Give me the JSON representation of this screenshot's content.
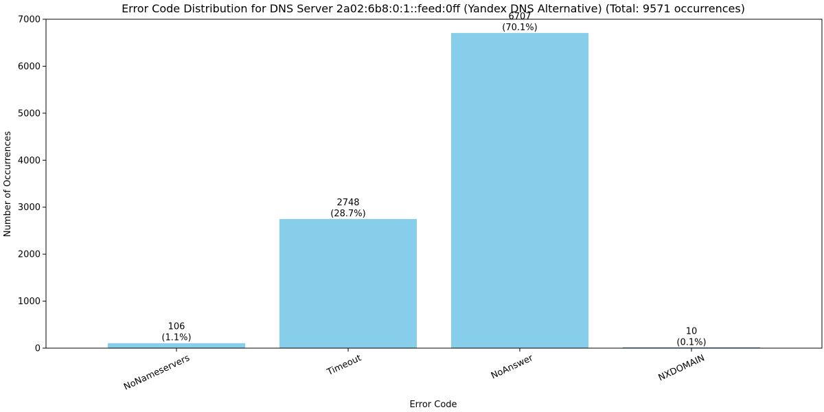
{
  "chart_data": {
    "type": "bar",
    "title": "Error Code Distribution for DNS Server 2a02:6b8:0:1::feed:0ff (Yandex DNS Alternative) (Total: 9571 occurrences)",
    "xlabel": "Error Code",
    "ylabel": "Number of Occurrences",
    "categories": [
      "NoNameservers",
      "Timeout",
      "NoAnswer",
      "NXDOMAIN"
    ],
    "values": [
      106,
      2748,
      6707,
      10
    ],
    "data_labels": [
      [
        "106",
        "(1.1%)"
      ],
      [
        "2748",
        "(28.7%)"
      ],
      [
        "6707",
        "(70.1%)"
      ],
      [
        "10",
        "(0.1%)"
      ]
    ],
    "ylim": [
      0,
      7000
    ],
    "yticks": [
      0,
      1000,
      2000,
      3000,
      4000,
      5000,
      6000,
      7000
    ],
    "bar_color": "#87CEEB",
    "grid": false,
    "legend": "none"
  }
}
